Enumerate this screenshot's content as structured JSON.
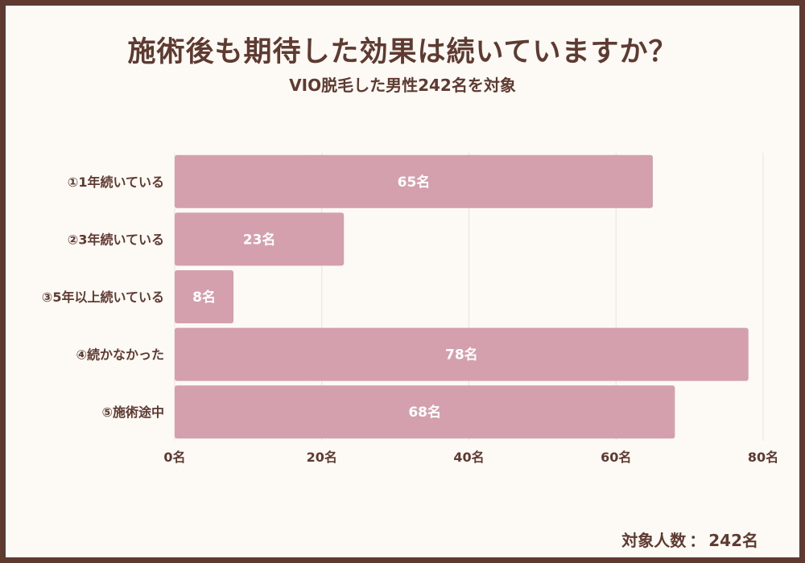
{
  "header": {
    "title": "施術後も期待した効果は続いていますか？",
    "subtitle": "VIO脱毛した男性242名を対象"
  },
  "footer": {
    "total_label": "対象人数",
    "total_value": "242名"
  },
  "colors": {
    "border": "#5e3a31",
    "background": "#fdfaf6",
    "bar": "#d4a0ae",
    "text": "#5e3a31",
    "grid": "#e6e2df"
  },
  "chart_data": {
    "type": "bar",
    "orientation": "horizontal",
    "categories": [
      "①1年続いている",
      "②3年続いている",
      "③5年以上続いている",
      "④続かなかった",
      "⑤施術途中"
    ],
    "values": [
      65,
      23,
      8,
      78,
      68
    ],
    "value_labels": [
      "65名",
      "23名",
      "8名",
      "78名",
      "68名"
    ],
    "x_ticks": [
      0,
      20,
      40,
      60,
      80
    ],
    "x_tick_labels": [
      "0名",
      "20名",
      "40名",
      "60名",
      "80名"
    ],
    "xlim": [
      0,
      80
    ],
    "grid": true,
    "legend": "none"
  }
}
